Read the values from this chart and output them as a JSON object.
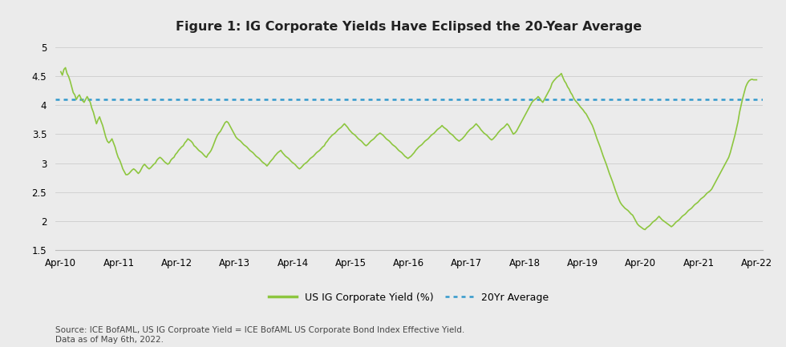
{
  "title": "Figure 1: IG Corporate Yields Have Eclipsed the 20-Year Average",
  "avg_value": 4.1,
  "ylim": [
    1.5,
    5.1
  ],
  "yticks": [
    1.5,
    2.0,
    2.5,
    3.0,
    3.5,
    4.0,
    4.5,
    5.0
  ],
  "line_color": "#8DC63F",
  "avg_color": "#3399CC",
  "background_color": "#EBEBEB",
  "source_text": "Source: ICE BofAML, US IG Corproate Yield = ICE BofAML US Corporate Bond Index Effective Yield.\nData as of May 6th, 2022.",
  "legend_line_label": "US IG Corporate Yield (%)",
  "legend_avg_label": "20Yr Average",
  "x_labels": [
    "Apr-10",
    "Apr-11",
    "Apr-12",
    "Apr-13",
    "Apr-14",
    "Apr-15",
    "Apr-16",
    "Apr-17",
    "Apr-18",
    "Apr-19",
    "Apr-20",
    "Apr-21",
    "Apr-22"
  ],
  "yields": [
    4.58,
    4.52,
    4.62,
    4.65,
    4.55,
    4.5,
    4.42,
    4.32,
    4.22,
    4.18,
    4.1,
    4.15,
    4.18,
    4.12,
    4.08,
    4.05,
    4.1,
    4.15,
    4.1,
    4.05,
    3.95,
    3.88,
    3.78,
    3.68,
    3.75,
    3.8,
    3.72,
    3.65,
    3.55,
    3.45,
    3.38,
    3.35,
    3.38,
    3.42,
    3.35,
    3.28,
    3.18,
    3.1,
    3.05,
    2.98,
    2.9,
    2.85,
    2.8,
    2.8,
    2.82,
    2.85,
    2.88,
    2.9,
    2.88,
    2.85,
    2.82,
    2.85,
    2.9,
    2.95,
    2.98,
    2.95,
    2.92,
    2.9,
    2.92,
    2.95,
    2.98,
    3.0,
    3.05,
    3.08,
    3.1,
    3.08,
    3.05,
    3.02,
    3.0,
    2.98,
    3.0,
    3.05,
    3.08,
    3.1,
    3.15,
    3.18,
    3.22,
    3.25,
    3.28,
    3.3,
    3.35,
    3.38,
    3.42,
    3.4,
    3.38,
    3.35,
    3.3,
    3.28,
    3.25,
    3.22,
    3.2,
    3.18,
    3.15,
    3.12,
    3.1,
    3.15,
    3.18,
    3.22,
    3.28,
    3.35,
    3.42,
    3.48,
    3.52,
    3.55,
    3.6,
    3.65,
    3.7,
    3.72,
    3.7,
    3.65,
    3.6,
    3.55,
    3.5,
    3.45,
    3.42,
    3.4,
    3.38,
    3.35,
    3.32,
    3.3,
    3.28,
    3.25,
    3.22,
    3.2,
    3.18,
    3.15,
    3.12,
    3.1,
    3.08,
    3.05,
    3.02,
    3.0,
    2.98,
    2.95,
    2.98,
    3.02,
    3.05,
    3.08,
    3.12,
    3.15,
    3.18,
    3.2,
    3.22,
    3.18,
    3.15,
    3.12,
    3.1,
    3.08,
    3.05,
    3.02,
    3.0,
    2.98,
    2.95,
    2.92,
    2.9,
    2.92,
    2.95,
    2.98,
    3.0,
    3.02,
    3.05,
    3.08,
    3.1,
    3.12,
    3.15,
    3.18,
    3.2,
    3.22,
    3.25,
    3.28,
    3.3,
    3.35,
    3.38,
    3.42,
    3.45,
    3.48,
    3.5,
    3.52,
    3.55,
    3.58,
    3.6,
    3.62,
    3.65,
    3.68,
    3.65,
    3.62,
    3.58,
    3.55,
    3.52,
    3.5,
    3.48,
    3.45,
    3.42,
    3.4,
    3.38,
    3.35,
    3.32,
    3.3,
    3.32,
    3.35,
    3.38,
    3.4,
    3.42,
    3.45,
    3.48,
    3.5,
    3.52,
    3.5,
    3.48,
    3.45,
    3.42,
    3.4,
    3.38,
    3.35,
    3.32,
    3.3,
    3.28,
    3.25,
    3.22,
    3.2,
    3.18,
    3.15,
    3.12,
    3.1,
    3.08,
    3.1,
    3.12,
    3.15,
    3.18,
    3.22,
    3.25,
    3.28,
    3.3,
    3.32,
    3.35,
    3.38,
    3.4,
    3.42,
    3.45,
    3.48,
    3.5,
    3.52,
    3.55,
    3.58,
    3.6,
    3.62,
    3.65,
    3.62,
    3.6,
    3.58,
    3.55,
    3.52,
    3.5,
    3.48,
    3.45,
    3.42,
    3.4,
    3.38,
    3.4,
    3.42,
    3.45,
    3.48,
    3.52,
    3.55,
    3.58,
    3.6,
    3.62,
    3.65,
    3.68,
    3.65,
    3.62,
    3.58,
    3.55,
    3.52,
    3.5,
    3.48,
    3.45,
    3.42,
    3.4,
    3.42,
    3.45,
    3.48,
    3.52,
    3.55,
    3.58,
    3.6,
    3.62,
    3.65,
    3.68,
    3.65,
    3.6,
    3.55,
    3.5,
    3.52,
    3.55,
    3.6,
    3.65,
    3.7,
    3.75,
    3.8,
    3.85,
    3.9,
    3.95,
    4.0,
    4.05,
    4.08,
    4.1,
    4.12,
    4.15,
    4.12,
    4.08,
    4.05,
    4.1,
    4.15,
    4.2,
    4.25,
    4.3,
    4.38,
    4.42,
    4.45,
    4.48,
    4.5,
    4.52,
    4.55,
    4.48,
    4.42,
    4.38,
    4.32,
    4.28,
    4.22,
    4.18,
    4.12,
    4.08,
    4.05,
    4.02,
    3.98,
    3.95,
    3.92,
    3.88,
    3.85,
    3.8,
    3.75,
    3.7,
    3.65,
    3.58,
    3.5,
    3.42,
    3.35,
    3.28,
    3.2,
    3.12,
    3.05,
    2.98,
    2.9,
    2.82,
    2.75,
    2.68,
    2.6,
    2.52,
    2.45,
    2.38,
    2.32,
    2.28,
    2.25,
    2.22,
    2.2,
    2.18,
    2.15,
    2.12,
    2.1,
    2.05,
    2.0,
    1.95,
    1.92,
    1.9,
    1.88,
    1.86,
    1.85,
    1.88,
    1.9,
    1.92,
    1.95,
    1.98,
    2.0,
    2.02,
    2.05,
    2.08,
    2.05,
    2.02,
    2.0,
    1.98,
    1.96,
    1.94,
    1.92,
    1.9,
    1.92,
    1.95,
    1.98,
    2.0,
    2.02,
    2.05,
    2.08,
    2.1,
    2.12,
    2.15,
    2.18,
    2.2,
    2.22,
    2.25,
    2.28,
    2.3,
    2.32,
    2.35,
    2.38,
    2.4,
    2.42,
    2.45,
    2.48,
    2.5,
    2.52,
    2.55,
    2.6,
    2.65,
    2.7,
    2.75,
    2.8,
    2.85,
    2.9,
    2.95,
    3.0,
    3.05,
    3.1,
    3.18,
    3.28,
    3.38,
    3.48,
    3.6,
    3.72,
    3.88,
    4.0,
    4.12,
    4.22,
    4.32,
    4.38,
    4.42,
    4.44,
    4.45,
    4.44,
    4.44,
    4.44
  ]
}
